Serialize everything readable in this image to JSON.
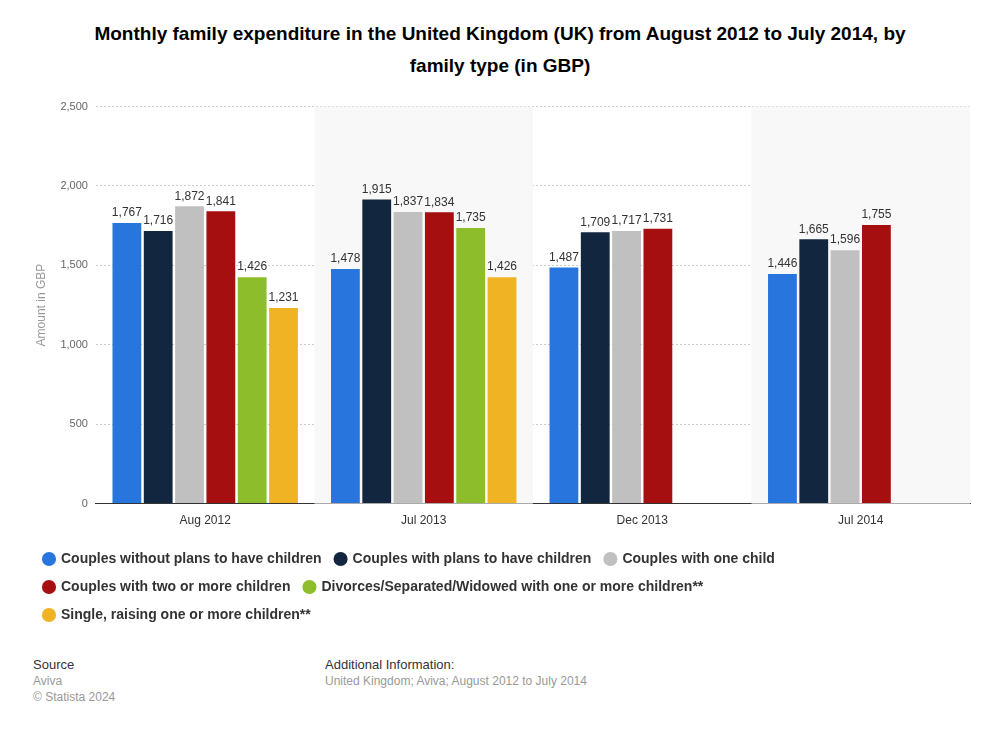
{
  "chart_data": {
    "type": "bar",
    "title": "Monthly family expenditure in the United Kingdom (UK) from August 2012 to July 2014, by family type (in GBP)",
    "y_label": "Amount in GBP",
    "categories": [
      "Aug 2012",
      "Jul 2013",
      "Dec 2013",
      "Jul 2014"
    ],
    "series": [
      {
        "name": "Couples without plans to have children",
        "color": "#2876dd",
        "values": [
          1767,
          1478,
          1487,
          1446
        ],
        "value_labels": [
          "1,767",
          "1,478",
          "1,487",
          "1,446"
        ]
      },
      {
        "name": "Couples with plans to have children",
        "color": "#13263f",
        "values": [
          1716,
          1915,
          1709,
          1665
        ],
        "value_labels": [
          "1,716",
          "1,915",
          "1,709",
          "1,665"
        ]
      },
      {
        "name": "Couples with one child",
        "color": "#c0c0c0",
        "values": [
          1872,
          1837,
          1717,
          1596
        ],
        "value_labels": [
          "1,872",
          "1,837",
          "1,717",
          "1,596"
        ]
      },
      {
        "name": "Couples with two or more children",
        "color": "#a50f0f",
        "values": [
          1841,
          1834,
          1731,
          1755
        ],
        "value_labels": [
          "1,841",
          "1,834",
          "1,731",
          "1,755"
        ]
      },
      {
        "name": "Divorces/Separated/Widowed with one or more children**",
        "color": "#8dbd2b",
        "values": [
          1426,
          1735,
          null,
          null
        ],
        "value_labels": [
          "1,426",
          "1,735",
          null,
          null
        ]
      },
      {
        "name": "Single, raising one or more children**",
        "color": "#f0b323",
        "values": [
          1231,
          1426,
          null,
          null
        ],
        "value_labels": [
          "1,231",
          "1,426",
          null,
          null
        ]
      }
    ],
    "ylim": [
      0,
      2500
    ],
    "yticks": [
      0,
      500,
      {
        "value": 1000,
        "label": "1,000"
      },
      {
        "value": 1500,
        "label": "1,500"
      },
      {
        "value": 2000,
        "label": "2,000"
      },
      {
        "value": 2500,
        "label": "2,500"
      }
    ],
    "grid": true,
    "legend": "bottom",
    "data_labels": true,
    "annotations": [
      "Source",
      "Aviva",
      "© Statista 2024",
      "Additional Information:",
      "United Kingdom; Aviva; August 2012 to July 2014"
    ]
  }
}
